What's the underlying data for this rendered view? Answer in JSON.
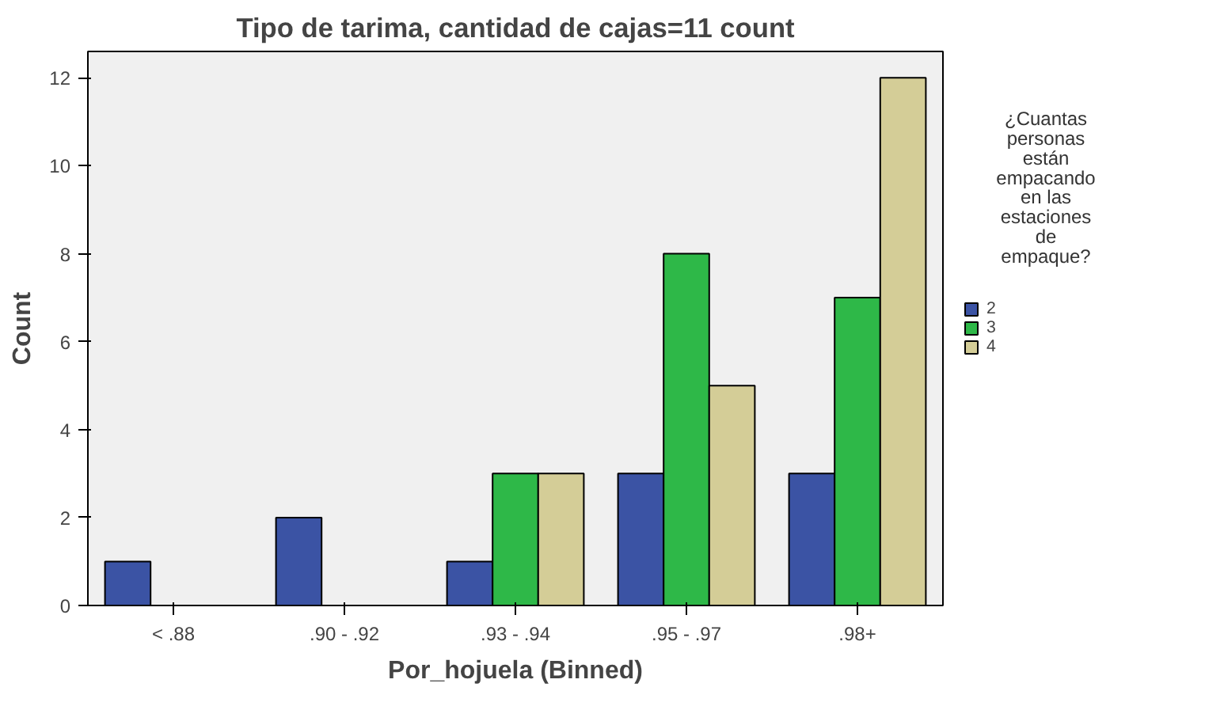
{
  "chart_data": {
    "type": "bar",
    "title": "Tipo de tarima, cantidad de cajas=11 count",
    "xlabel": "Por_hojuela (Binned)",
    "ylabel": "Count",
    "legend_title": "¿Cuantas personas están empacando en las estaciones de empaque?",
    "categories": [
      "< .88",
      ".90 - .92",
      ".93 - .94",
      ".95 - .97",
      ".98+"
    ],
    "series": [
      {
        "name": "2",
        "color": "#3b53a4",
        "values": [
          1,
          2,
          1,
          3,
          3
        ]
      },
      {
        "name": "3",
        "color": "#2eb848",
        "values": [
          null,
          null,
          3,
          8,
          7
        ]
      },
      {
        "name": "4",
        "color": "#d4cd97",
        "values": [
          null,
          null,
          3,
          5,
          12
        ]
      }
    ],
    "ylim": [
      0,
      12.6
    ],
    "yticks": [
      0,
      2,
      4,
      6,
      8,
      10,
      12
    ],
    "grid": false,
    "legend": "right"
  }
}
